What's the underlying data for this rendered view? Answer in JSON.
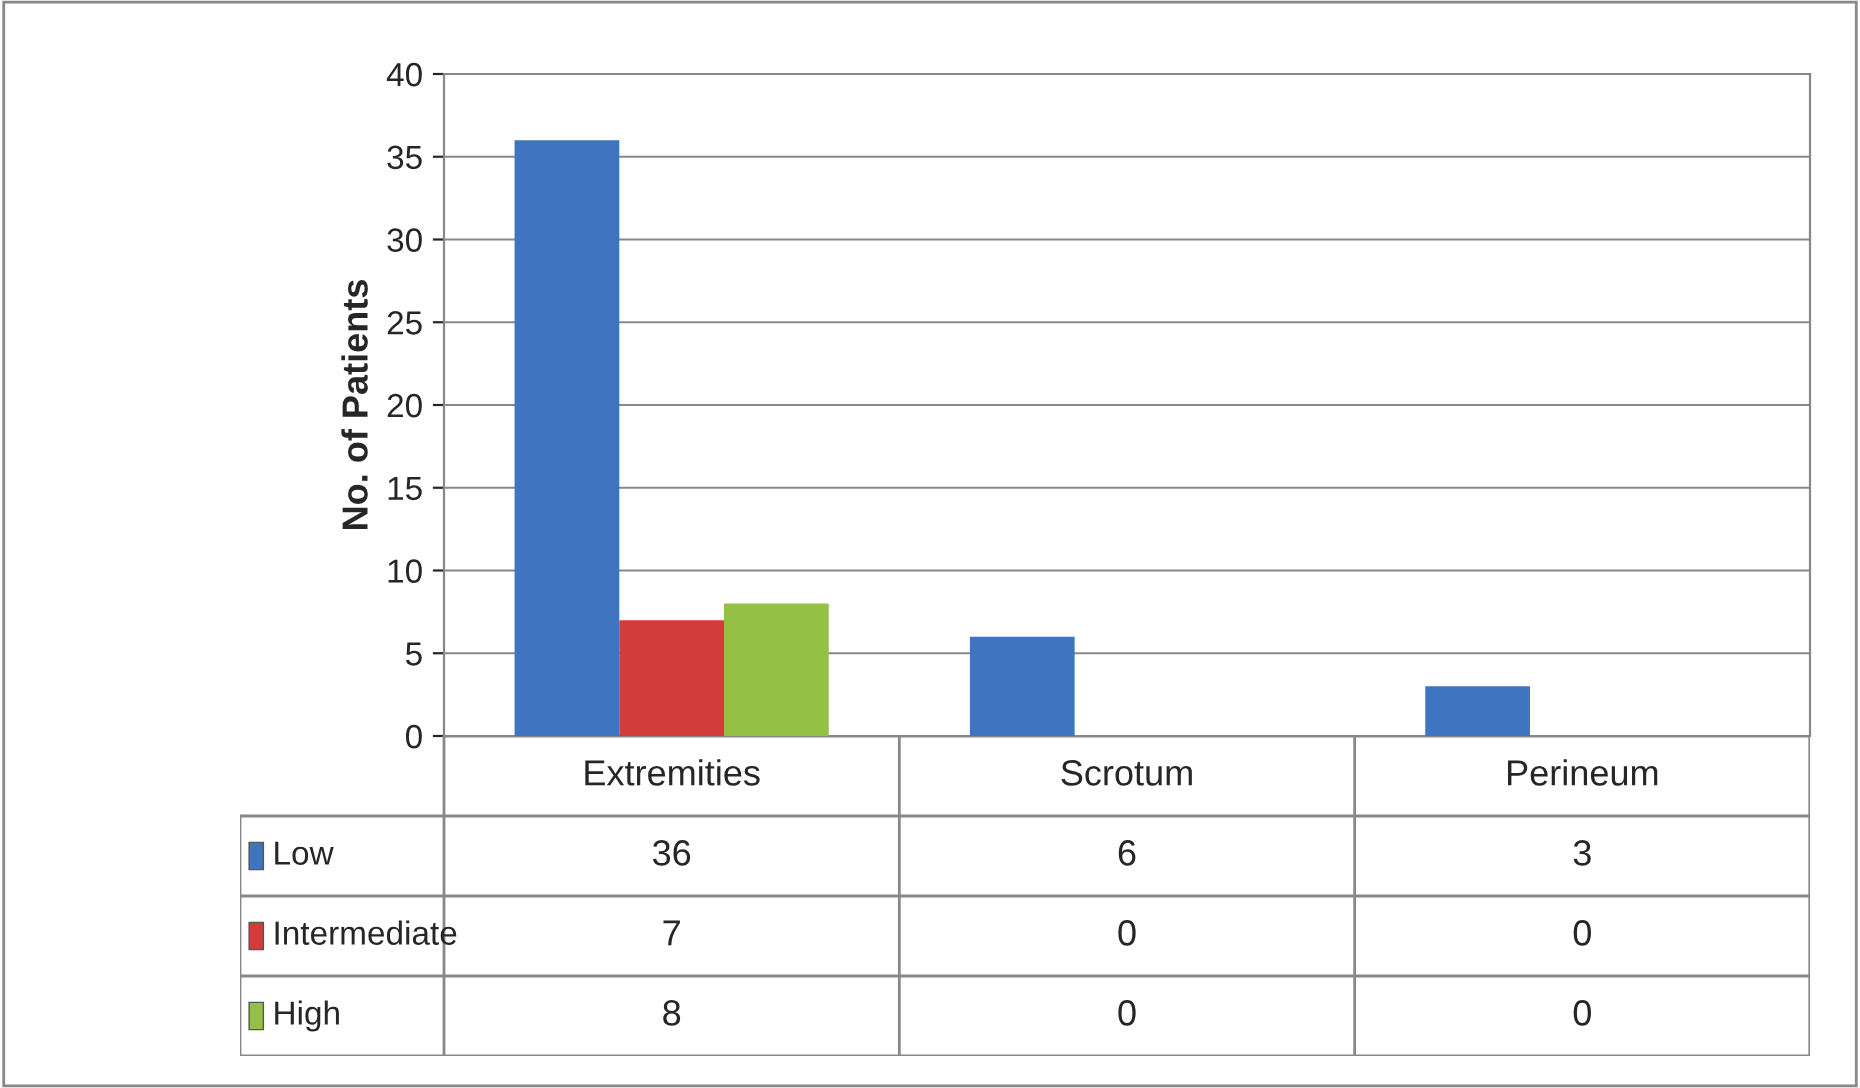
{
  "chart_data": {
    "type": "bar",
    "ylabel": "No. of Patients",
    "categories": [
      "Extremities",
      "Scrotum",
      "Perineum"
    ],
    "series": [
      {
        "name": "Low",
        "color": "#3f74c0",
        "values": [
          36,
          6,
          3
        ]
      },
      {
        "name": "Intermediate",
        "color": "#d43c3a",
        "values": [
          7,
          0,
          0
        ]
      },
      {
        "name": "High",
        "color": "#94c043",
        "values": [
          8,
          0,
          0
        ]
      }
    ],
    "ylim": [
      0,
      40
    ],
    "yticks": [
      0,
      5,
      10,
      15,
      20,
      25,
      30,
      35,
      40
    ],
    "grid": "y",
    "data_labels": true,
    "legend": "bottom"
  }
}
